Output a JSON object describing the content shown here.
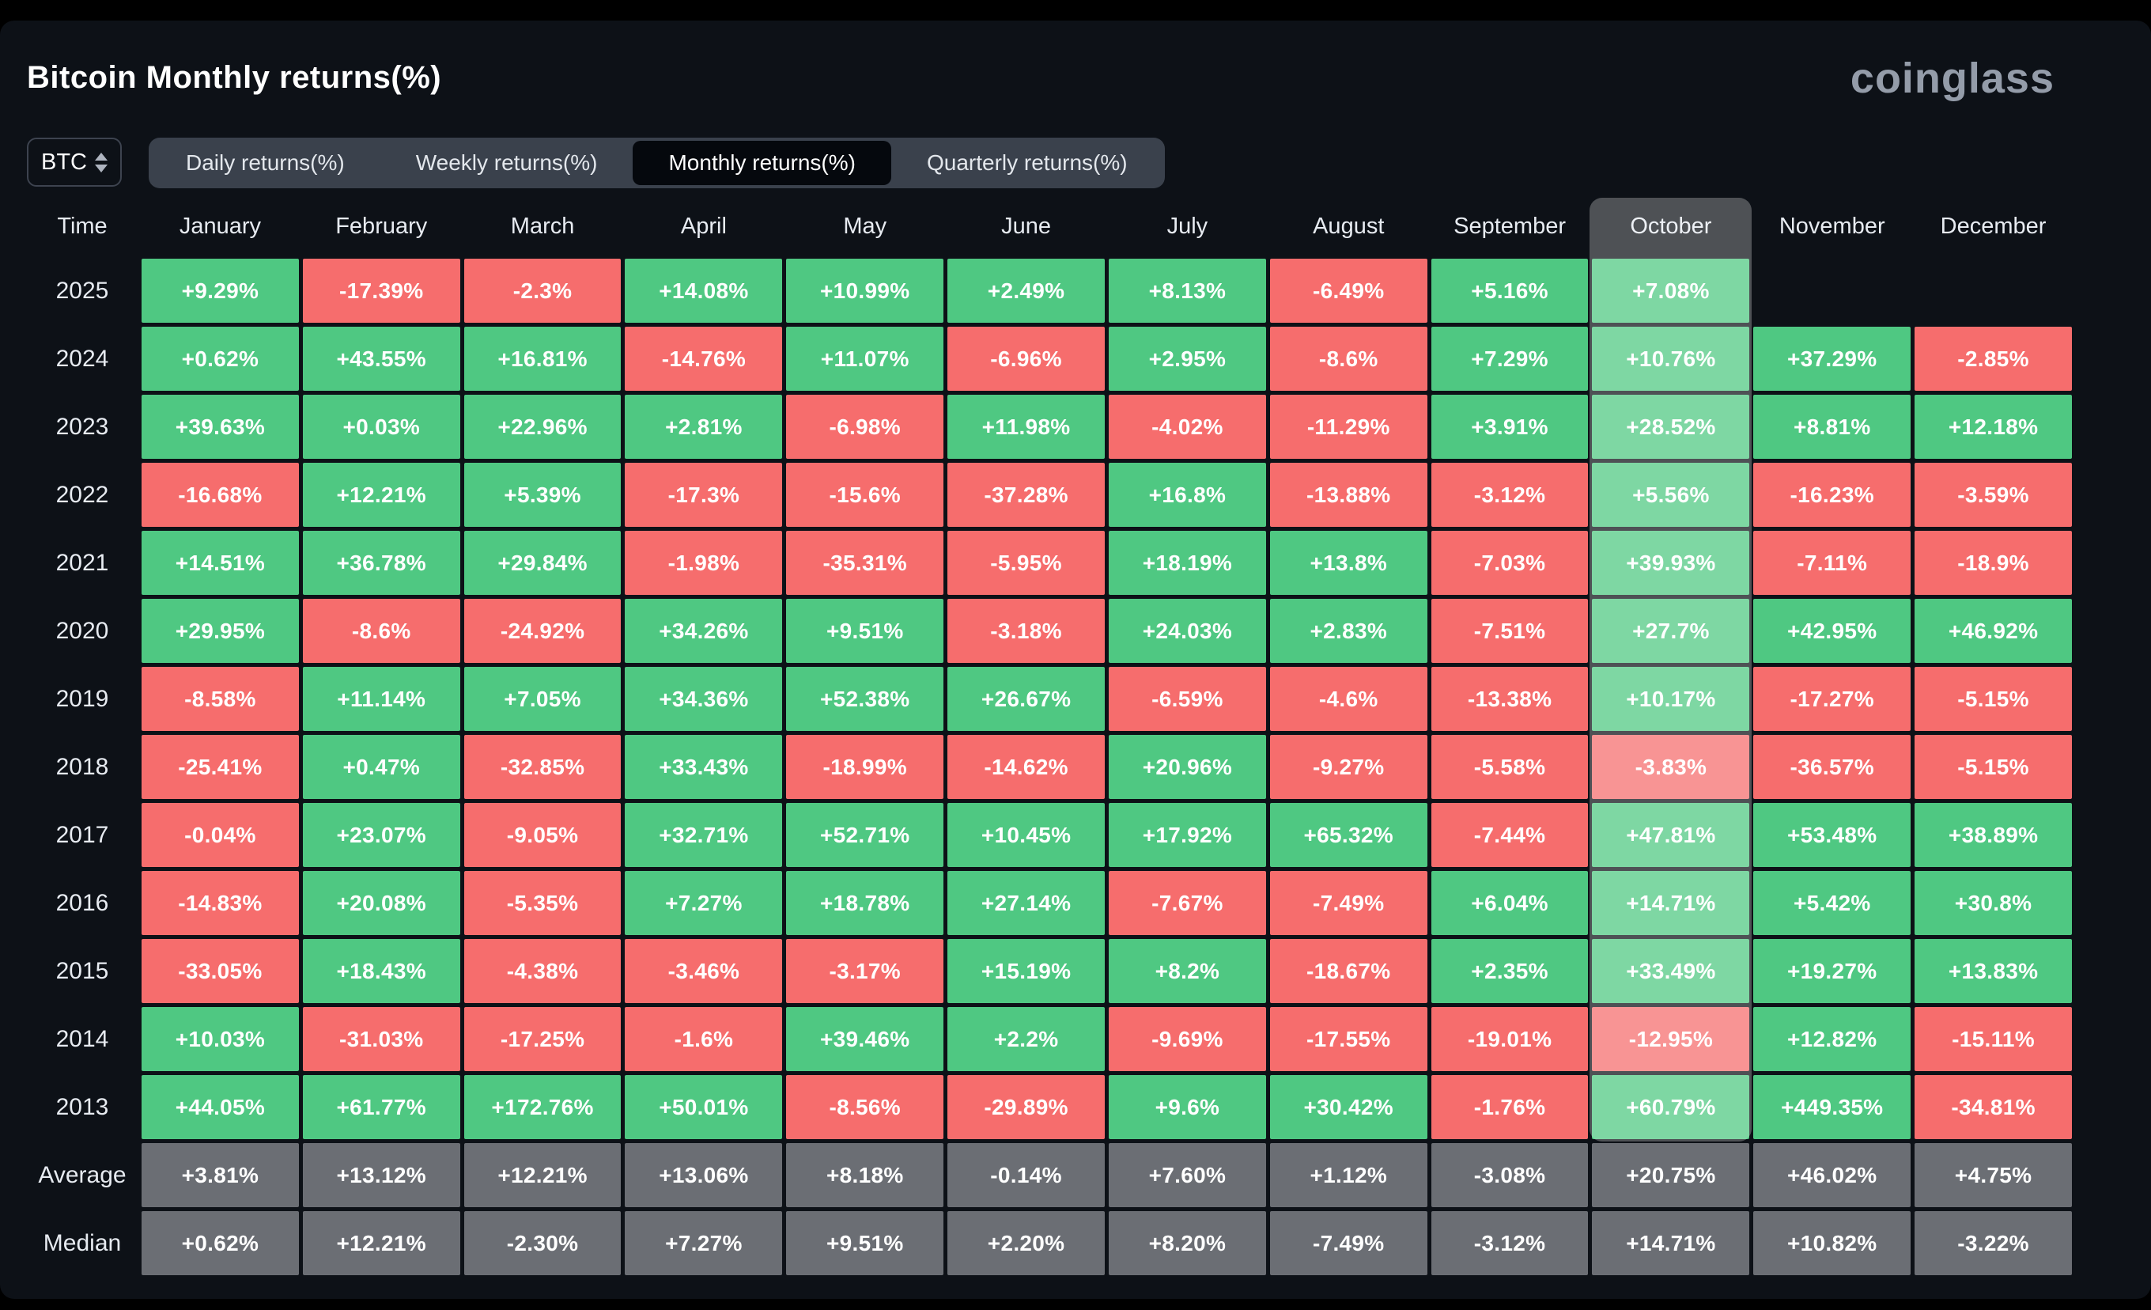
{
  "header": {
    "title": "Bitcoin Monthly returns(%)",
    "brand": "coinglass"
  },
  "controls": {
    "symbol_select": {
      "value": "BTC",
      "icon": "updown-chevron-icon"
    },
    "tabs": [
      {
        "label": "Daily returns(%)",
        "active": false
      },
      {
        "label": "Weekly returns(%)",
        "active": false
      },
      {
        "label": "Monthly returns(%)",
        "active": true
      },
      {
        "label": "Quarterly returns(%)",
        "active": false
      }
    ]
  },
  "colors": {
    "positive": "#4fc882",
    "negative": "#f66d6d",
    "summary": "#6b6e74",
    "panel_background": "#0d1117",
    "highlight_overlay": "rgba(255,255,255,0.27)"
  },
  "chart_data": {
    "type": "heatmap",
    "title": "Bitcoin Monthly returns(%)",
    "corner_label": "Time",
    "highlighted_column": "October",
    "columns": [
      "January",
      "February",
      "March",
      "April",
      "May",
      "June",
      "July",
      "August",
      "September",
      "October",
      "November",
      "December"
    ],
    "rows": [
      {
        "label": "2025",
        "summary": false,
        "values": [
          "+9.29%",
          "-17.39%",
          "-2.3%",
          "+14.08%",
          "+10.99%",
          "+2.49%",
          "+8.13%",
          "-6.49%",
          "+5.16%",
          "+7.08%",
          null,
          null
        ]
      },
      {
        "label": "2024",
        "summary": false,
        "values": [
          "+0.62%",
          "+43.55%",
          "+16.81%",
          "-14.76%",
          "+11.07%",
          "-6.96%",
          "+2.95%",
          "-8.6%",
          "+7.29%",
          "+10.76%",
          "+37.29%",
          "-2.85%"
        ]
      },
      {
        "label": "2023",
        "summary": false,
        "values": [
          "+39.63%",
          "+0.03%",
          "+22.96%",
          "+2.81%",
          "-6.98%",
          "+11.98%",
          "-4.02%",
          "-11.29%",
          "+3.91%",
          "+28.52%",
          "+8.81%",
          "+12.18%"
        ]
      },
      {
        "label": "2022",
        "summary": false,
        "values": [
          "-16.68%",
          "+12.21%",
          "+5.39%",
          "-17.3%",
          "-15.6%",
          "-37.28%",
          "+16.8%",
          "-13.88%",
          "-3.12%",
          "+5.56%",
          "-16.23%",
          "-3.59%"
        ]
      },
      {
        "label": "2021",
        "summary": false,
        "values": [
          "+14.51%",
          "+36.78%",
          "+29.84%",
          "-1.98%",
          "-35.31%",
          "-5.95%",
          "+18.19%",
          "+13.8%",
          "-7.03%",
          "+39.93%",
          "-7.11%",
          "-18.9%"
        ]
      },
      {
        "label": "2020",
        "summary": false,
        "values": [
          "+29.95%",
          "-8.6%",
          "-24.92%",
          "+34.26%",
          "+9.51%",
          "-3.18%",
          "+24.03%",
          "+2.83%",
          "-7.51%",
          "+27.7%",
          "+42.95%",
          "+46.92%"
        ]
      },
      {
        "label": "2019",
        "summary": false,
        "values": [
          "-8.58%",
          "+11.14%",
          "+7.05%",
          "+34.36%",
          "+52.38%",
          "+26.67%",
          "-6.59%",
          "-4.6%",
          "-13.38%",
          "+10.17%",
          "-17.27%",
          "-5.15%"
        ]
      },
      {
        "label": "2018",
        "summary": false,
        "values": [
          "-25.41%",
          "+0.47%",
          "-32.85%",
          "+33.43%",
          "-18.99%",
          "-14.62%",
          "+20.96%",
          "-9.27%",
          "-5.58%",
          "-3.83%",
          "-36.57%",
          "-5.15%"
        ]
      },
      {
        "label": "2017",
        "summary": false,
        "values": [
          "-0.04%",
          "+23.07%",
          "-9.05%",
          "+32.71%",
          "+52.71%",
          "+10.45%",
          "+17.92%",
          "+65.32%",
          "-7.44%",
          "+47.81%",
          "+53.48%",
          "+38.89%"
        ]
      },
      {
        "label": "2016",
        "summary": false,
        "values": [
          "-14.83%",
          "+20.08%",
          "-5.35%",
          "+7.27%",
          "+18.78%",
          "+27.14%",
          "-7.67%",
          "-7.49%",
          "+6.04%",
          "+14.71%",
          "+5.42%",
          "+30.8%"
        ]
      },
      {
        "label": "2015",
        "summary": false,
        "values": [
          "-33.05%",
          "+18.43%",
          "-4.38%",
          "-3.46%",
          "-3.17%",
          "+15.19%",
          "+8.2%",
          "-18.67%",
          "+2.35%",
          "+33.49%",
          "+19.27%",
          "+13.83%"
        ]
      },
      {
        "label": "2014",
        "summary": false,
        "values": [
          "+10.03%",
          "-31.03%",
          "-17.25%",
          "-1.6%",
          "+39.46%",
          "+2.2%",
          "-9.69%",
          "-17.55%",
          "-19.01%",
          "-12.95%",
          "+12.82%",
          "-15.11%"
        ]
      },
      {
        "label": "2013",
        "summary": false,
        "values": [
          "+44.05%",
          "+61.77%",
          "+172.76%",
          "+50.01%",
          "-8.56%",
          "-29.89%",
          "+9.6%",
          "+30.42%",
          "-1.76%",
          "+60.79%",
          "+449.35%",
          "-34.81%"
        ]
      },
      {
        "label": "Average",
        "summary": true,
        "values": [
          "+3.81%",
          "+13.12%",
          "+12.21%",
          "+13.06%",
          "+8.18%",
          "-0.14%",
          "+7.60%",
          "+1.12%",
          "-3.08%",
          "+20.75%",
          "+46.02%",
          "+4.75%"
        ]
      },
      {
        "label": "Median",
        "summary": true,
        "values": [
          "+0.62%",
          "+12.21%",
          "-2.30%",
          "+7.27%",
          "+9.51%",
          "+2.20%",
          "+8.20%",
          "-7.49%",
          "-3.12%",
          "+14.71%",
          "+10.82%",
          "-3.22%"
        ]
      }
    ]
  }
}
